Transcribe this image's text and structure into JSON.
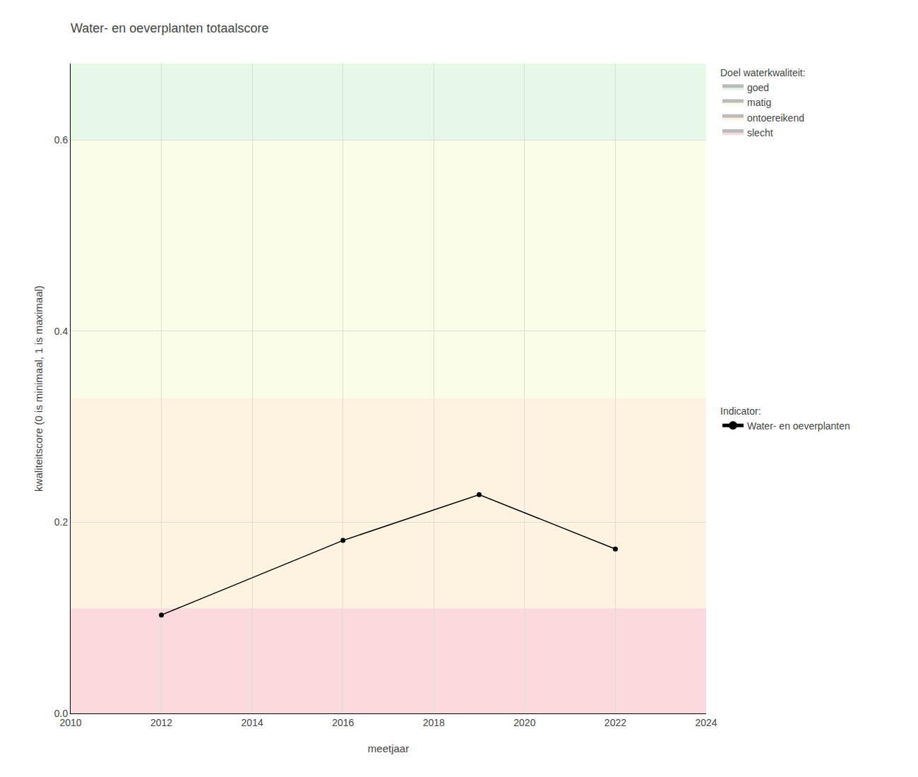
{
  "chart_data": {
    "type": "line",
    "title": "Water- en oeverplanten totaalscore",
    "xlabel": "meetjaar",
    "ylabel": "kwaliteitscore (0 is minimaal, 1 is maximaal)",
    "x": [
      2012,
      2016,
      2019,
      2022
    ],
    "series": [
      {
        "name": "Water- en oeverplanten",
        "color": "#000000",
        "marker": "circle",
        "values": [
          0.103,
          0.181,
          0.229,
          0.172
        ]
      }
    ],
    "series_legend_title": "Indicator:",
    "bands": [
      {
        "label": "goed",
        "color": "#E8F8E8",
        "ymin": 0.6,
        "ymax": 0.68
      },
      {
        "label": "matig",
        "color": "#FAFDE8",
        "ymin": 0.33,
        "ymax": 0.6
      },
      {
        "label": "ontoereikend",
        "color": "#FDF3E0",
        "ymin": 0.11,
        "ymax": 0.33
      },
      {
        "label": "slecht",
        "color": "#FADADD",
        "ymin": 0.0,
        "ymax": 0.11
      }
    ],
    "bands_legend_title": "Doel waterkwaliteit:",
    "xlim": [
      2010,
      2024
    ],
    "ylim": [
      0,
      0.68
    ],
    "xticks": [
      2010,
      2012,
      2014,
      2016,
      2018,
      2020,
      2022,
      2024
    ],
    "yticks": [
      {
        "value": 0,
        "label": "0.0"
      },
      0.2,
      0.4,
      0.6
    ],
    "grid": true
  }
}
